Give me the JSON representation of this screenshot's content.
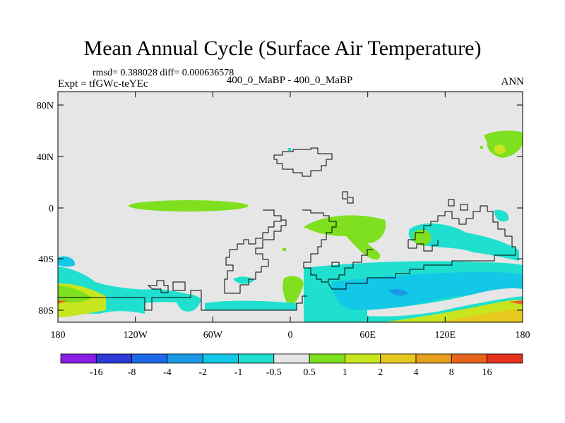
{
  "title": "Mean Annual Cycle (Surface Air Temperature)",
  "stats": "rmsd= 0.388028 diff= 0.000636578",
  "experiment": "Expt = tfGWc-teYEc",
  "comparison": "400_0_MaBP - 400_0_MaBP",
  "season": "ANN",
  "lat_ticks": [
    "80N",
    "40N",
    "0",
    "40S",
    "80S"
  ],
  "lon_ticks": [
    "180",
    "120W",
    "60W",
    "0",
    "60E",
    "120E",
    "180"
  ],
  "colorbar": {
    "labels": [
      "-16",
      "-8",
      "-4",
      "-2",
      "-1",
      "-0.5",
      "0.5",
      "1",
      "2",
      "4",
      "8",
      "16"
    ],
    "colors": [
      "#8a1ee6",
      "#2d3bd6",
      "#1e6ae6",
      "#1a9ae6",
      "#12c8e6",
      "#1fe0cf",
      "#e6e6e6",
      "#7ee01e",
      "#c8e61e",
      "#e6c81e",
      "#e6a01e",
      "#e6641e",
      "#e6321e"
    ]
  },
  "colors": {
    "neutral": "#e6e6e6",
    "green": "#7ee01e",
    "yellow_green": "#c8e61e",
    "cyan": "#1fe0cf",
    "light_blue": "#12c8e6",
    "blue": "#1a9ae6",
    "yellow": "#e6c81e"
  }
}
